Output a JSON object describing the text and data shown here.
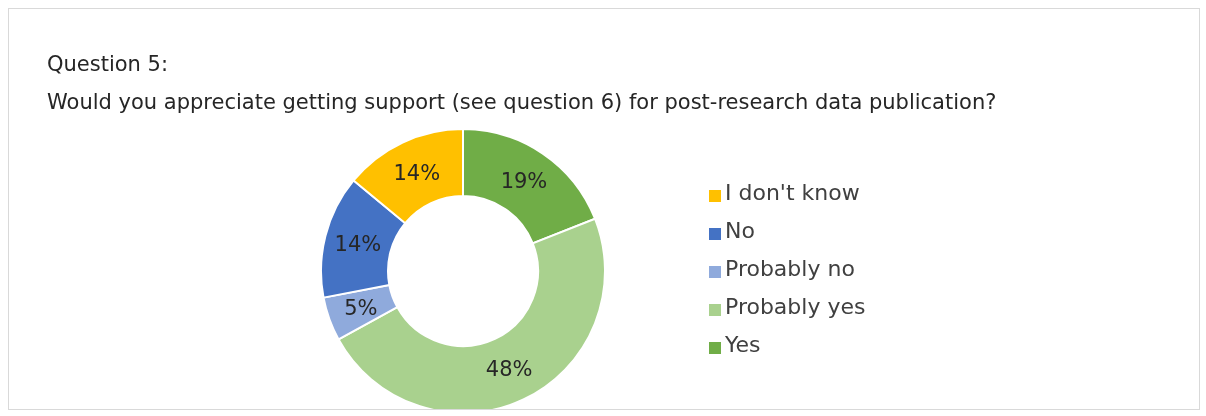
{
  "chart_data": {
    "type": "donut",
    "title": "Question 5:",
    "subtitle": "Would you appreciate getting support (see question 6) for post-research data publication?",
    "categories": [
      "Yes",
      "Probably yes",
      "Probably no",
      "No",
      "I don't know"
    ],
    "values": [
      19,
      48,
      5,
      14,
      14
    ],
    "value_labels": [
      "19%",
      "48%",
      "5%",
      "14%",
      "14%"
    ],
    "colors": [
      "#70ad47",
      "#a9d18e",
      "#8faadc",
      "#4472c4",
      "#ffc000"
    ],
    "legend": "right"
  }
}
